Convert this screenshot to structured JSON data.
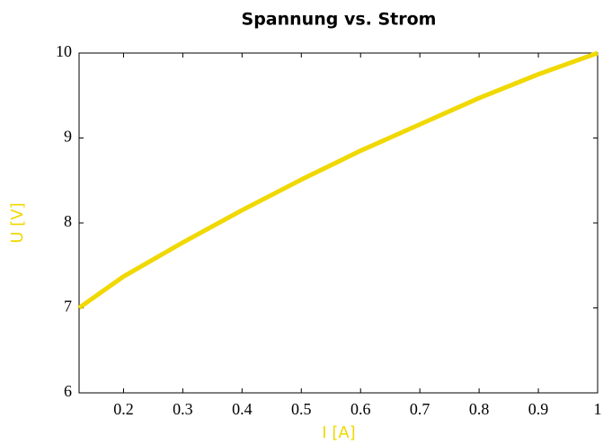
{
  "chart_data": {
    "type": "line",
    "title": "Spannung vs. Strom",
    "x_label": "I [A]",
    "y_label": "U [V]",
    "x": [
      0.125,
      0.2,
      0.3,
      0.4,
      0.5,
      0.6,
      0.7,
      0.8,
      0.9,
      1.0
    ],
    "series": [
      {
        "name": "U",
        "color": "#f0d800",
        "values": [
          7.0,
          7.37,
          7.77,
          8.15,
          8.51,
          8.85,
          9.16,
          9.47,
          9.75,
          10.0
        ]
      }
    ],
    "xlim": [
      0.125,
      1
    ],
    "ylim": [
      6,
      10
    ],
    "xticks": [
      0.2,
      0.3,
      0.4,
      0.5,
      0.6,
      0.7,
      0.8,
      0.9,
      1
    ],
    "yticks": [
      6,
      7,
      8,
      9,
      10
    ],
    "grid": false
  }
}
